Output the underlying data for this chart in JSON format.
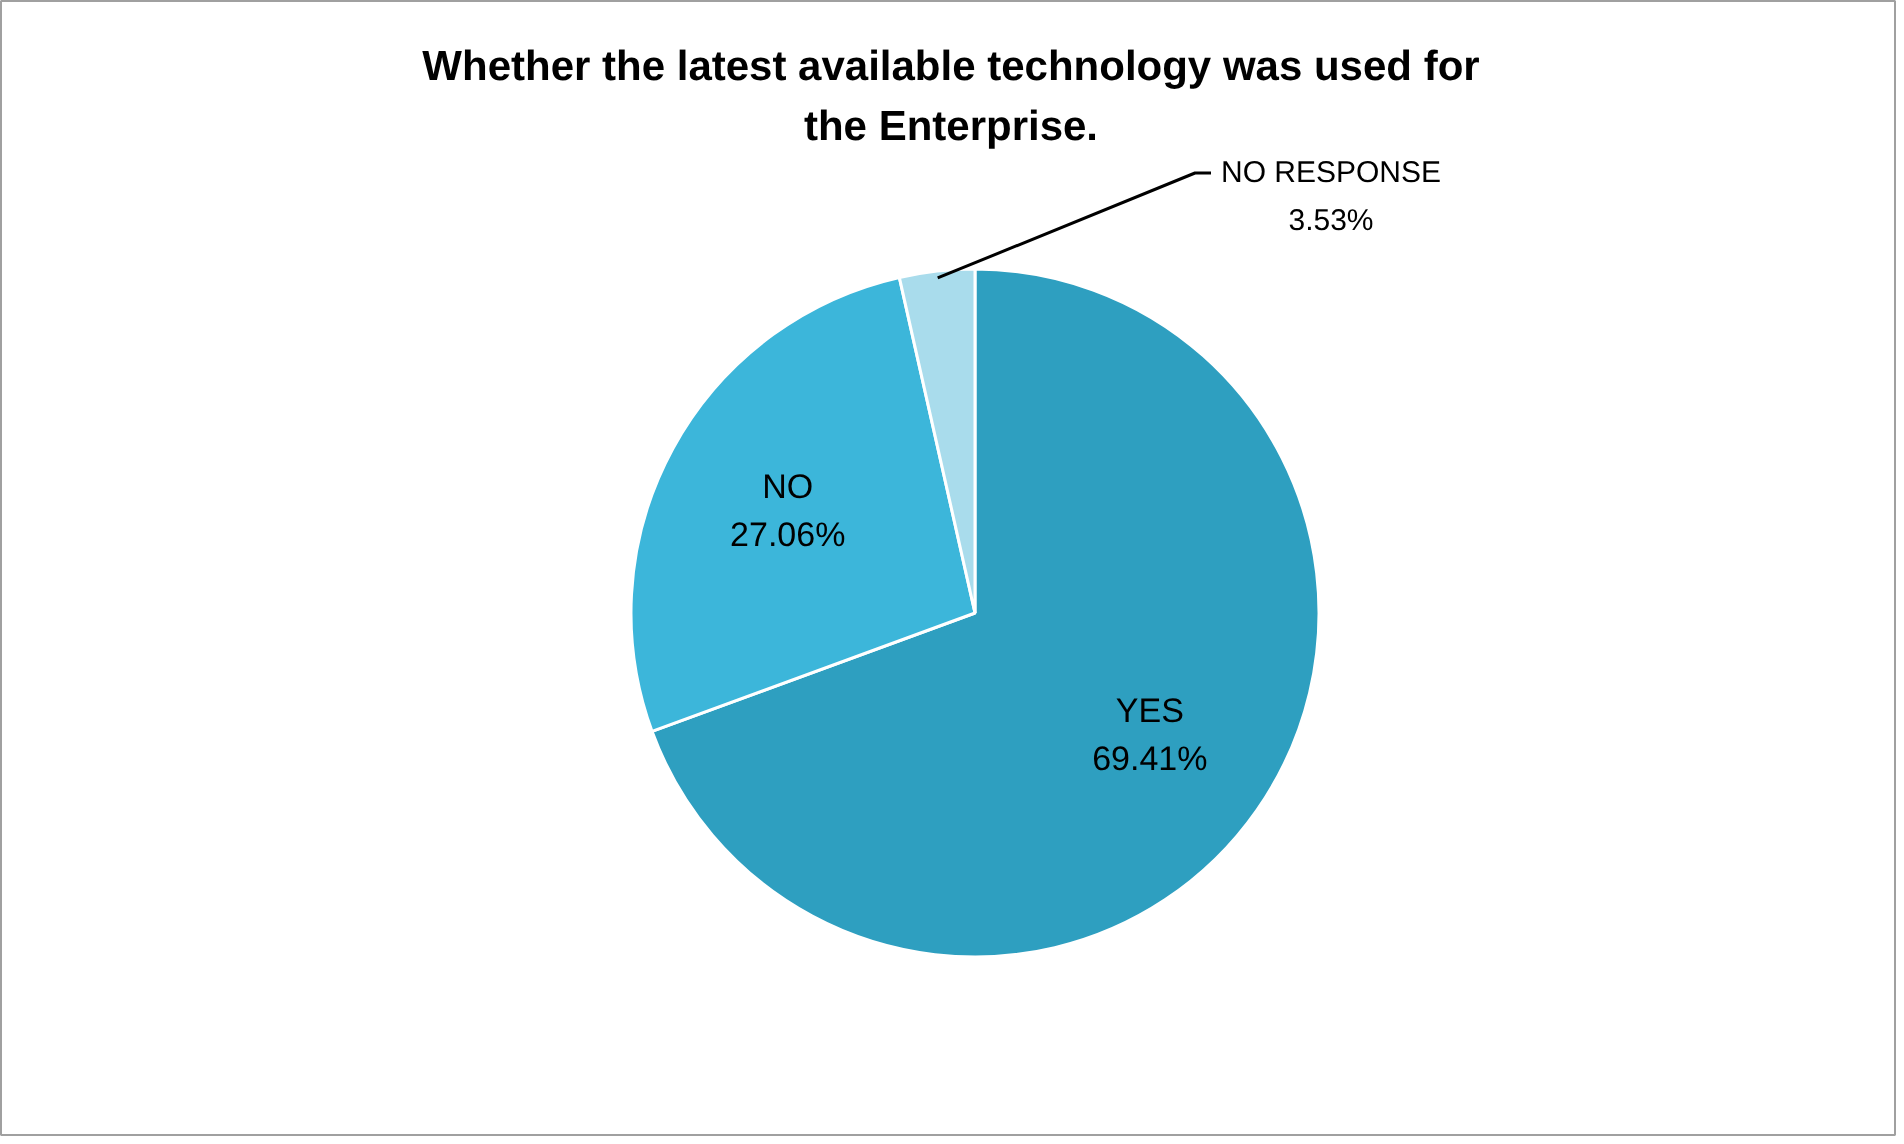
{
  "chart_data": {
    "type": "pie",
    "title": "Whether the latest available technology was used for the Enterprise.",
    "categories": [
      "YES",
      "NO",
      "NO RESPONSE"
    ],
    "values": [
      69.41,
      27.06,
      3.53
    ],
    "colors": [
      "#2e9fc0",
      "#3cb6da",
      "#a9dcec"
    ],
    "value_labels": [
      "69.41%",
      "27.06%",
      "3.53%"
    ]
  }
}
